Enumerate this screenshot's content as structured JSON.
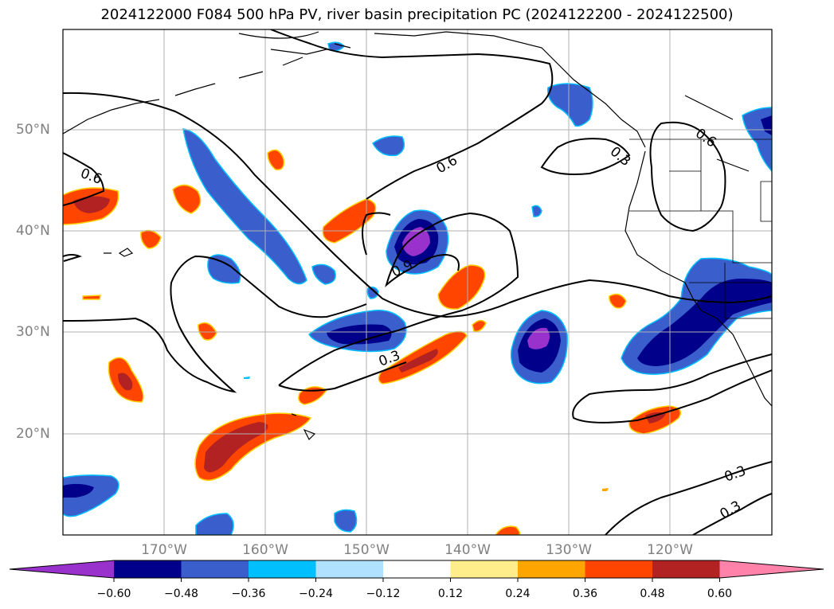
{
  "title": "2024122000 F084 500 hPa PV, river basin precipitation PC (2024122200 - 2024122500)",
  "map": {
    "lon_range": [
      -180,
      -110
    ],
    "lat_range": [
      10,
      60
    ],
    "lat_ticks": [
      "50°N",
      "40°N",
      "30°N",
      "20°N"
    ],
    "lon_ticks": [
      "170°W",
      "160°W",
      "150°W",
      "140°W",
      "130°W",
      "120°W"
    ],
    "contour_labels": [
      "0.6",
      "0.6",
      "0.6",
      "0.3",
      "0.9",
      "0.3",
      "0.3",
      "0.3"
    ]
  },
  "colorbar": {
    "colors": [
      "#9932cc",
      "#00008b",
      "#3a5fcd",
      "#00bfff",
      "#b0e2ff",
      "#ffffff",
      "#ffec8b",
      "#ffa500",
      "#ff4500",
      "#b22222",
      "#ff82ab"
    ],
    "labels": [
      "−0.60",
      "−0.48",
      "−0.36",
      "−0.24",
      "−0.12",
      "0.12",
      "0.24",
      "0.36",
      "0.48",
      "0.60"
    ]
  }
}
